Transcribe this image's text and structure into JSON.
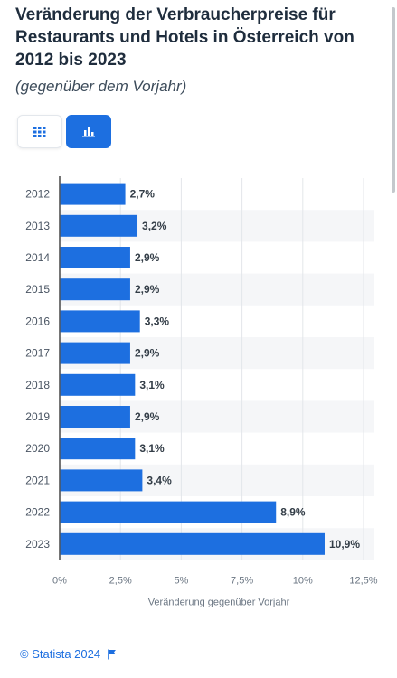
{
  "header": {
    "title": "Veränderung der Verbraucherpreise für Restaurants und Hotels in Österreich von 2012 bis 2023",
    "subtitle": "(gegenüber dem Vorjahr)"
  },
  "view_toggle": {
    "table_icon": "grid-icon",
    "chart_icon": "bar-chart-icon",
    "active": "chart"
  },
  "footer": {
    "credit": "© Statista 2024",
    "flag_icon": "flag-icon"
  },
  "colors": {
    "bar": "#1d6fe0",
    "accent": "#1d6fe0"
  },
  "chart_data": {
    "type": "bar",
    "orientation": "horizontal",
    "categories": [
      "2012",
      "2013",
      "2014",
      "2015",
      "2016",
      "2017",
      "2018",
      "2019",
      "2020",
      "2021",
      "2022",
      "2023"
    ],
    "values": [
      2.7,
      3.2,
      2.9,
      2.9,
      3.3,
      2.9,
      3.1,
      2.9,
      3.1,
      3.4,
      8.9,
      10.9
    ],
    "data_labels": [
      "2,7%",
      "3,2%",
      "2,9%",
      "2,9%",
      "3,3%",
      "2,9%",
      "3,1%",
      "2,9%",
      "3,1%",
      "3,4%",
      "8,9%",
      "10,9%"
    ],
    "x_ticks": [
      0,
      2.5,
      5,
      7.5,
      10,
      12.5
    ],
    "x_tick_labels": [
      "0%",
      "2,5%",
      "5%",
      "7,5%",
      "10%",
      "12,5%"
    ],
    "xlim": [
      0,
      12.5
    ],
    "xlabel": "Veränderung gegenüber Vorjahr",
    "ylabel": "",
    "grid": true,
    "zebra_rows": true
  }
}
